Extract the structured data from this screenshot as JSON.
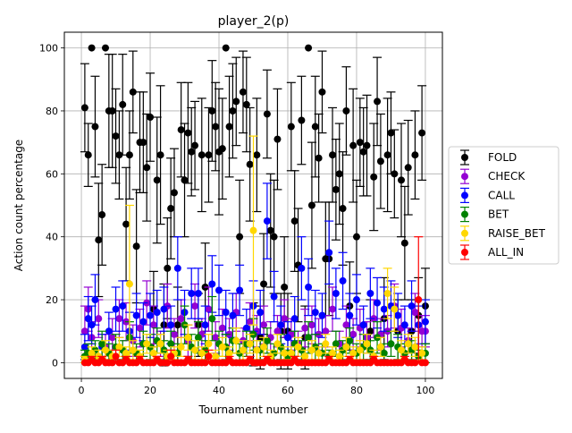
{
  "chart_data": {
    "type": "scatter",
    "title": "player_2(p)",
    "xlabel": "Tournament number",
    "ylabel": "Action count percentage",
    "xlim": [
      -4.95,
      104.95
    ],
    "ylim": [
      -5.0,
      105.0
    ],
    "xticks": [
      0,
      20,
      40,
      60,
      80,
      100
    ],
    "yticks": [
      0,
      20,
      40,
      60,
      80,
      100
    ],
    "grid": true,
    "legend_position": "center-right",
    "error_bars": true,
    "series": [
      {
        "name": "FOLD",
        "color": "#000000",
        "x": [
          1,
          2,
          3,
          4,
          5,
          6,
          7,
          8,
          9,
          10,
          11,
          12,
          13,
          14,
          15,
          16,
          17,
          18,
          19,
          20,
          21,
          22,
          23,
          24,
          25,
          26,
          27,
          28,
          29,
          30,
          31,
          32,
          33,
          34,
          35,
          36,
          37,
          38,
          39,
          40,
          41,
          42,
          43,
          44,
          45,
          46,
          47,
          48,
          49,
          50,
          51,
          52,
          53,
          54,
          55,
          56,
          57,
          58,
          59,
          60,
          61,
          62,
          63,
          64,
          65,
          66,
          67,
          68,
          69,
          70,
          71,
          72,
          73,
          74,
          75,
          76,
          77,
          78,
          79,
          80,
          81,
          82,
          83,
          84,
          85,
          86,
          87,
          88,
          89,
          90,
          91,
          92,
          93,
          94,
          95,
          96,
          97,
          98,
          99,
          100
        ],
        "y": [
          81,
          66,
          100,
          75,
          39,
          47,
          100,
          80,
          80,
          72,
          66,
          82,
          44,
          66,
          86,
          37,
          70,
          70,
          62,
          78,
          17,
          58,
          66,
          12,
          30,
          49,
          54,
          12,
          74,
          58,
          73,
          67,
          69,
          12,
          66,
          24,
          66,
          80,
          75,
          67,
          68,
          100,
          75,
          80,
          83,
          40,
          86,
          82,
          63,
          9,
          66,
          8,
          25,
          79,
          42,
          40,
          71,
          10,
          24,
          10,
          75,
          45,
          31,
          77,
          8,
          100,
          50,
          75,
          65,
          86,
          33,
          33,
          66,
          55,
          60,
          49,
          80,
          18,
          69,
          40,
          70,
          67,
          69,
          10,
          59,
          83,
          64,
          14,
          66,
          73,
          60,
          10,
          58,
          38,
          62,
          10,
          66,
          15,
          73,
          18
        ],
        "err": [
          14,
          10,
          0,
          16,
          18,
          16,
          0,
          18,
          18,
          15,
          14,
          16,
          18,
          14,
          13,
          18,
          16,
          16,
          17,
          14,
          12,
          20,
          22,
          13,
          16,
          16,
          14,
          12,
          15,
          18,
          16,
          14,
          14,
          10,
          18,
          14,
          15,
          16,
          14,
          20,
          16,
          0,
          16,
          15,
          14,
          18,
          13,
          15,
          18,
          10,
          18,
          10,
          16,
          14,
          18,
          18,
          16,
          12,
          16,
          12,
          14,
          16,
          18,
          14,
          10,
          0,
          20,
          16,
          14,
          13,
          18,
          18,
          15,
          16,
          16,
          18,
          14,
          14,
          18,
          18,
          14,
          14,
          16,
          10,
          17,
          14,
          15,
          13,
          18,
          13,
          14,
          10,
          18,
          18,
          15,
          10,
          14,
          12,
          15,
          12
        ]
      },
      {
        "name": "CHECK",
        "color": "#9400d3",
        "x": [
          1,
          2,
          3,
          5,
          7,
          9,
          11,
          13,
          15,
          17,
          19,
          21,
          23,
          25,
          27,
          29,
          31,
          33,
          35,
          37,
          39,
          41,
          43,
          45,
          47,
          49,
          51,
          53,
          55,
          57,
          59,
          61,
          63,
          65,
          67,
          69,
          71,
          73,
          75,
          77,
          79,
          81,
          83,
          85,
          87,
          89,
          91,
          93,
          95,
          97,
          99,
          100
        ],
        "y": [
          10,
          17,
          8,
          14,
          5,
          8,
          14,
          13,
          7,
          11,
          19,
          12,
          6,
          18,
          9,
          14,
          7,
          18,
          9,
          17,
          8,
          11,
          9,
          16,
          7,
          13,
          10,
          12,
          8,
          10,
          14,
          9,
          6,
          11,
          12,
          9,
          10,
          17,
          6,
          12,
          9,
          11,
          8,
          14,
          9,
          10,
          18,
          11,
          7,
          16,
          10,
          10
        ],
        "err": [
          8,
          7,
          5,
          6,
          4,
          6,
          6,
          6,
          5,
          6,
          7,
          6,
          4,
          7,
          5,
          6,
          5,
          7,
          5,
          7,
          5,
          6,
          5,
          6,
          4,
          6,
          5,
          6,
          5,
          5,
          6,
          5,
          4,
          6,
          6,
          5,
          5,
          7,
          4,
          6,
          5,
          6,
          5,
          6,
          5,
          5,
          7,
          6,
          4,
          6,
          5,
          5
        ]
      },
      {
        "name": "CALL",
        "color": "#0000ff",
        "x": [
          1,
          2,
          3,
          4,
          6,
          8,
          10,
          12,
          14,
          16,
          18,
          20,
          22,
          24,
          26,
          28,
          30,
          32,
          34,
          36,
          38,
          40,
          42,
          44,
          46,
          48,
          50,
          52,
          54,
          56,
          58,
          60,
          62,
          64,
          66,
          68,
          70,
          72,
          74,
          76,
          78,
          80,
          82,
          84,
          86,
          88,
          90,
          92,
          94,
          96,
          98,
          100
        ],
        "y": [
          5,
          14,
          12,
          20,
          5,
          10,
          17,
          18,
          10,
          15,
          13,
          15,
          16,
          17,
          12,
          30,
          16,
          22,
          22,
          12,
          25,
          23,
          16,
          15,
          23,
          11,
          18,
          16,
          45,
          21,
          12,
          8,
          14,
          30,
          24,
          16,
          15,
          35,
          22,
          26,
          15,
          20,
          12,
          22,
          19,
          17,
          18,
          15,
          12,
          18,
          12,
          13
        ],
        "err": [
          4,
          7,
          6,
          8,
          4,
          6,
          7,
          8,
          6,
          7,
          6,
          7,
          7,
          7,
          6,
          10,
          7,
          8,
          8,
          6,
          9,
          8,
          7,
          7,
          8,
          6,
          8,
          7,
          12,
          8,
          6,
          5,
          7,
          10,
          9,
          7,
          7,
          10,
          8,
          9,
          7,
          8,
          6,
          8,
          8,
          7,
          8,
          7,
          6,
          8,
          6,
          7
        ]
      },
      {
        "name": "BET",
        "color": "#008000",
        "x": [
          1,
          2,
          4,
          6,
          8,
          10,
          12,
          14,
          16,
          18,
          20,
          22,
          24,
          26,
          28,
          30,
          32,
          34,
          36,
          38,
          40,
          42,
          44,
          46,
          48,
          50,
          52,
          54,
          56,
          58,
          60,
          62,
          64,
          66,
          68,
          70,
          72,
          74,
          76,
          78,
          80,
          82,
          84,
          86,
          88,
          90,
          92,
          94,
          96,
          98,
          100
        ],
        "y": [
          2,
          3,
          4,
          6,
          3,
          5,
          4,
          8,
          3,
          6,
          5,
          7,
          4,
          6,
          3,
          12,
          5,
          8,
          4,
          14,
          6,
          5,
          7,
          3,
          6,
          9,
          4,
          7,
          3,
          5,
          2,
          6,
          4,
          8,
          5,
          3,
          2,
          6,
          4,
          7,
          3,
          5,
          4,
          8,
          3,
          6,
          5,
          3,
          4,
          2,
          3
        ],
        "err": [
          2,
          3,
          3,
          4,
          3,
          4,
          3,
          5,
          3,
          4,
          4,
          4,
          3,
          4,
          3,
          6,
          4,
          5,
          3,
          7,
          4,
          4,
          4,
          3,
          4,
          5,
          3,
          4,
          3,
          4,
          2,
          4,
          3,
          5,
          4,
          3,
          2,
          4,
          3,
          4,
          3,
          4,
          3,
          5,
          3,
          4,
          4,
          3,
          3,
          2,
          3
        ]
      },
      {
        "name": "RAISE_BET",
        "color": "#ffd700",
        "x": [
          1,
          3,
          5,
          7,
          9,
          11,
          13,
          14,
          15,
          17,
          19,
          21,
          23,
          25,
          27,
          29,
          31,
          33,
          35,
          37,
          39,
          41,
          43,
          45,
          47,
          49,
          50,
          51,
          53,
          55,
          57,
          59,
          61,
          63,
          65,
          67,
          69,
          71,
          73,
          75,
          77,
          79,
          81,
          83,
          85,
          87,
          89,
          91,
          93,
          95,
          97,
          99
        ],
        "y": [
          1,
          3,
          2,
          4,
          2,
          5,
          3,
          25,
          4,
          2,
          6,
          3,
          6,
          2,
          3,
          5,
          8,
          4,
          3,
          6,
          2,
          5,
          3,
          7,
          4,
          6,
          42,
          4,
          5,
          2,
          6,
          3,
          3,
          5,
          2,
          4,
          3,
          6,
          3,
          2,
          5,
          3,
          4,
          6,
          2,
          5,
          22,
          17,
          4,
          6,
          5,
          3
        ],
        "err": [
          1,
          2,
          2,
          3,
          2,
          3,
          2,
          25,
          3,
          2,
          3,
          2,
          3,
          2,
          2,
          3,
          4,
          3,
          2,
          3,
          2,
          3,
          2,
          4,
          3,
          3,
          30,
          3,
          3,
          2,
          3,
          2,
          2,
          3,
          2,
          3,
          2,
          3,
          2,
          2,
          3,
          2,
          3,
          3,
          2,
          3,
          8,
          7,
          3,
          3,
          3,
          2
        ]
      },
      {
        "name": "ALL_IN",
        "color": "#ff0000",
        "x": [
          1,
          2,
          3,
          4,
          5,
          6,
          7,
          8,
          9,
          10,
          11,
          12,
          13,
          14,
          15,
          16,
          17,
          18,
          19,
          20,
          21,
          22,
          23,
          24,
          25,
          26,
          27,
          28,
          29,
          30,
          31,
          32,
          33,
          34,
          35,
          36,
          37,
          38,
          39,
          40,
          41,
          42,
          43,
          44,
          45,
          46,
          47,
          48,
          49,
          50,
          51,
          52,
          53,
          54,
          55,
          56,
          57,
          58,
          59,
          60,
          61,
          62,
          63,
          64,
          65,
          66,
          67,
          68,
          69,
          70,
          71,
          72,
          73,
          74,
          75,
          76,
          77,
          78,
          79,
          80,
          81,
          82,
          83,
          84,
          85,
          86,
          87,
          88,
          89,
          90,
          91,
          92,
          93,
          94,
          95,
          96,
          97,
          98,
          99,
          100
        ],
        "y": [
          0,
          0,
          1,
          0,
          0,
          1,
          0,
          0,
          0,
          2,
          0,
          0,
          1,
          0,
          0,
          0,
          1,
          0,
          0,
          0,
          0,
          1,
          0,
          0,
          0,
          2,
          0,
          0,
          0,
          0,
          1,
          0,
          0,
          0,
          0,
          0,
          2,
          0,
          0,
          0,
          0,
          0,
          1,
          0,
          0,
          0,
          0,
          0,
          1,
          0,
          0,
          0,
          0,
          1,
          0,
          0,
          0,
          0,
          0,
          0,
          0,
          1,
          0,
          0,
          0,
          0,
          0,
          0,
          0,
          0,
          0,
          1,
          0,
          0,
          0,
          0,
          0,
          1,
          0,
          0,
          0,
          0,
          0,
          0,
          1,
          0,
          0,
          0,
          0,
          0,
          0,
          0,
          0,
          1,
          0,
          0,
          0,
          20,
          0,
          0
        ],
        "err": [
          0,
          0,
          1,
          0,
          0,
          1,
          0,
          0,
          0,
          2,
          0,
          0,
          1,
          0,
          0,
          0,
          1,
          0,
          0,
          0,
          0,
          1,
          0,
          0,
          0,
          2,
          0,
          0,
          0,
          0,
          1,
          0,
          0,
          0,
          0,
          0,
          2,
          0,
          0,
          0,
          0,
          0,
          1,
          0,
          0,
          0,
          0,
          0,
          1,
          0,
          0,
          0,
          0,
          1,
          0,
          0,
          0,
          0,
          0,
          0,
          0,
          1,
          0,
          0,
          0,
          0,
          0,
          0,
          0,
          0,
          0,
          1,
          0,
          0,
          0,
          0,
          0,
          1,
          0,
          0,
          0,
          0,
          0,
          0,
          1,
          0,
          0,
          0,
          0,
          0,
          0,
          0,
          0,
          1,
          0,
          0,
          0,
          20,
          0,
          0
        ]
      }
    ]
  }
}
